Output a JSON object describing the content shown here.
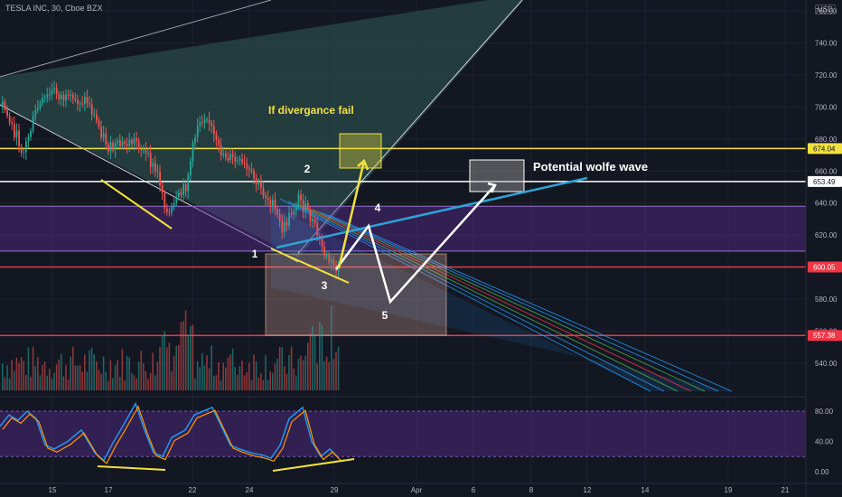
{
  "header": {
    "symbol_line": "TESLA INC, 30, Cboe BZX",
    "currency_badge": "USD"
  },
  "chart_data": {
    "type": "candlestick",
    "price_axis": {
      "ticks": [
        540,
        560,
        580,
        600,
        620,
        640,
        660,
        680,
        700,
        720,
        740,
        760
      ],
      "range": [
        522,
        768
      ]
    },
    "price_labels": [
      {
        "value": 674.04,
        "text": "674.04",
        "color": "#f1e23d"
      },
      {
        "value": 653.49,
        "text": "653.49",
        "color": "#ffffff"
      },
      {
        "value": 600.05,
        "text": "600.05",
        "color": "#f23645"
      },
      {
        "value": 557.38,
        "text": "557.38",
        "color": "#f23645"
      }
    ],
    "date_axis": [
      "15",
      "17",
      "22",
      "24",
      "29",
      "Apr",
      "6",
      "8",
      "12",
      "14",
      "19",
      "21"
    ],
    "horizontal_lines": [
      {
        "value": 674.04,
        "color": "#f1e23d"
      },
      {
        "value": 653.49,
        "color": "#ffffff"
      },
      {
        "value": 600.05,
        "color": "#f23645"
      },
      {
        "value": 557.38,
        "color": "#f23645"
      }
    ],
    "zone_band": {
      "from": 610,
      "to": 638
    },
    "annotations": {
      "divergence_note": "If divergance fail",
      "wolfe_note": "Potential wolfe wave",
      "points": [
        "1",
        "2",
        "3",
        "4",
        "5"
      ]
    },
    "oscillator": {
      "ticks": [
        "80.00",
        "40.00",
        "0.00"
      ],
      "upper": 80,
      "lower": 20
    },
    "accent_colors": {
      "up": "#26a69a",
      "down": "#ef5350",
      "channel": "#2196f3",
      "band": "#5b2c8f"
    }
  }
}
